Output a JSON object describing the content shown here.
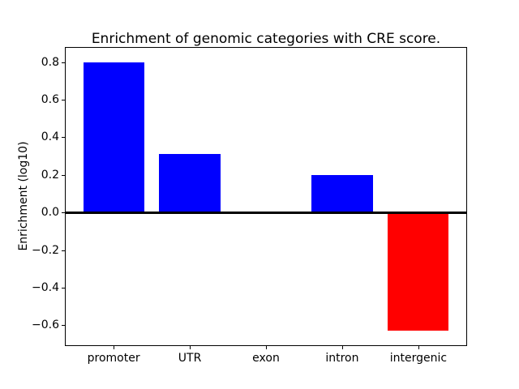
{
  "chart_data": {
    "type": "bar",
    "title": "Enrichment of genomic categories with CRE score.",
    "xlabel": "",
    "ylabel": "Enrichment (log10)",
    "categories": [
      "promoter",
      "UTR",
      "exon",
      "intron",
      "intergenic"
    ],
    "values": [
      0.8,
      0.31,
      0.0,
      0.2,
      -0.63
    ],
    "bar_colors": [
      "#0000FF",
      "#0000FF",
      "#0000FF",
      "#0000FF",
      "#FF0000"
    ],
    "positive_color": "#0000FF",
    "negative_color": "#FF0000",
    "yticks": [
      0.8,
      0.6,
      0.4,
      0.2,
      0.0,
      -0.2,
      -0.4,
      -0.6
    ],
    "ytick_labels": [
      "0.8",
      "0.6",
      "0.4",
      "0.2",
      "0.0",
      "−0.2",
      "−0.4",
      "−0.6"
    ],
    "ylim": [
      -0.71,
      0.88
    ],
    "xlim": [
      -0.64,
      4.64
    ],
    "bar_width": 0.8,
    "zero_line": true,
    "grid": false,
    "legend_position": "none",
    "background": "#FFFFFF",
    "axes_edge_color": "#000000"
  }
}
